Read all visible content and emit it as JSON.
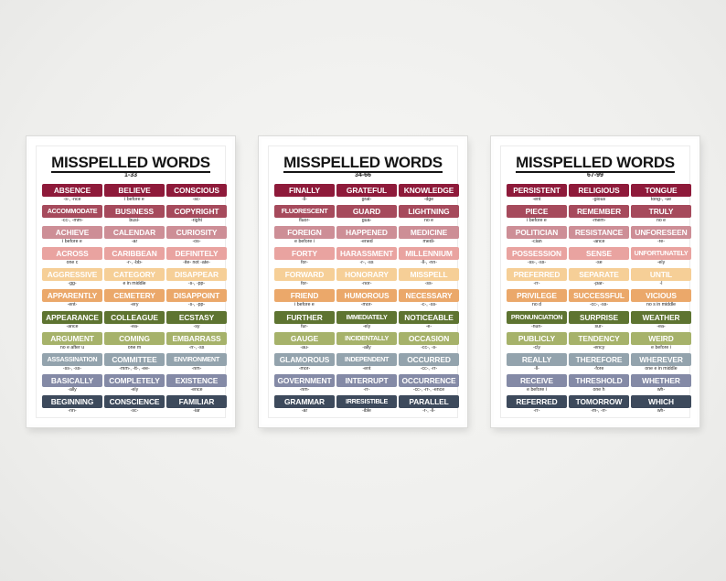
{
  "colors": {
    "rows": [
      "#8e1a3a",
      "#a64a5c",
      "#cd8e96",
      "#e9a3a0",
      "#f6cf97",
      "#eba86a",
      "#5e7431",
      "#a6b26a",
      "#93a3ad",
      "#848aa6",
      "#3d4a5c"
    ]
  },
  "posters": [
    {
      "title": "MISSPELLED WORDS",
      "range": "1-33",
      "rows": [
        [
          {
            "word": "ABSENCE",
            "hint": "-s-, -nce"
          },
          {
            "word": "BELIEVE",
            "hint": "i before e"
          },
          {
            "word": "CONSCIOUS",
            "hint": "-sc-"
          }
        ],
        [
          {
            "word": "ACCOMMODATE",
            "hint": "-cc-, -mm-"
          },
          {
            "word": "BUSINESS",
            "hint": "busi-"
          },
          {
            "word": "COPYRIGHT",
            "hint": "-right"
          }
        ],
        [
          {
            "word": "ACHIEVE",
            "hint": "i before e"
          },
          {
            "word": "CALENDAR",
            "hint": "-ar"
          },
          {
            "word": "CURIOSITY",
            "hint": "-os-"
          }
        ],
        [
          {
            "word": "ACROSS",
            "hint": "one c"
          },
          {
            "word": "CARIBBEAN",
            "hint": "-r-, -bb-"
          },
          {
            "word": "DEFINITELY",
            "hint": "-ite- not -ate-"
          }
        ],
        [
          {
            "word": "AGGRESSIVE",
            "hint": "-gg-"
          },
          {
            "word": "CATEGORY",
            "hint": "e in middle"
          },
          {
            "word": "DISAPPEAR",
            "hint": "-s-, -pp-"
          }
        ],
        [
          {
            "word": "APPARENTLY",
            "hint": "-ent-"
          },
          {
            "word": "CEMETERY",
            "hint": "-ery"
          },
          {
            "word": "DISAPPOINT",
            "hint": "-s-, -pp-"
          }
        ],
        [
          {
            "word": "APPEARANCE",
            "hint": "-ance"
          },
          {
            "word": "COLLEAGUE",
            "hint": "-ea-"
          },
          {
            "word": "ECSTASY",
            "hint": "-sy"
          }
        ],
        [
          {
            "word": "ARGUMENT",
            "hint": "no e after u"
          },
          {
            "word": "COMING",
            "hint": "one m"
          },
          {
            "word": "EMBARRASS",
            "hint": "-rr-, -ss"
          }
        ],
        [
          {
            "word": "ASSASSINATION",
            "hint": "-ss-, -ss-"
          },
          {
            "word": "COMMITTEE",
            "hint": "-mm-, -tt-, -ee-"
          },
          {
            "word": "ENVIRONMENT",
            "hint": "-nm-"
          }
        ],
        [
          {
            "word": "BASICALLY",
            "hint": "-ally"
          },
          {
            "word": "COMPLETELY",
            "hint": "-ely"
          },
          {
            "word": "EXISTENCE",
            "hint": "-ence"
          }
        ],
        [
          {
            "word": "BEGINNING",
            "hint": "-nn-"
          },
          {
            "word": "CONSCIENCE",
            "hint": "-sc-"
          },
          {
            "word": "FAMILIAR",
            "hint": "-iar"
          }
        ]
      ]
    },
    {
      "title": "MISSPELLED WORDS",
      "range": "34-66",
      "rows": [
        [
          {
            "word": "FINALLY",
            "hint": "-ll-"
          },
          {
            "word": "GRATEFUL",
            "hint": "grat-"
          },
          {
            "word": "KNOWLEDGE",
            "hint": "-dge"
          }
        ],
        [
          {
            "word": "FLUORESCENT",
            "hint": "fluor-"
          },
          {
            "word": "GUARD",
            "hint": "gua-"
          },
          {
            "word": "LIGHTNING",
            "hint": "no e"
          }
        ],
        [
          {
            "word": "FOREIGN",
            "hint": "e before i"
          },
          {
            "word": "HAPPENED",
            "hint": "-ened"
          },
          {
            "word": "MEDICINE",
            "hint": "medi-"
          }
        ],
        [
          {
            "word": "FORTY",
            "hint": "for-"
          },
          {
            "word": "HARASSMENT",
            "hint": "-r-, -ss"
          },
          {
            "word": "MILLENNIUM",
            "hint": "-ll-, -nn-"
          }
        ],
        [
          {
            "word": "FORWARD",
            "hint": "for-"
          },
          {
            "word": "HONORARY",
            "hint": "-nor-"
          },
          {
            "word": "MISSPELL",
            "hint": "-ss-"
          }
        ],
        [
          {
            "word": "FRIEND",
            "hint": "i before e"
          },
          {
            "word": "HUMOROUS",
            "hint": "-mor-"
          },
          {
            "word": "NECESSARY",
            "hint": "-c-, -ss-"
          }
        ],
        [
          {
            "word": "FURTHER",
            "hint": "fur-"
          },
          {
            "word": "IMMEDIATELY",
            "hint": "-ely"
          },
          {
            "word": "NOTICEABLE",
            "hint": "-e-"
          }
        ],
        [
          {
            "word": "GAUGE",
            "hint": "-au-"
          },
          {
            "word": "INCIDENTALLY",
            "hint": "-ally"
          },
          {
            "word": "OCCASION",
            "hint": "-cc-, -s-"
          }
        ],
        [
          {
            "word": "GLAMOROUS",
            "hint": "-mor-"
          },
          {
            "word": "INDEPENDENT",
            "hint": "-ent"
          },
          {
            "word": "OCCURRED",
            "hint": "-cc-, -rr-"
          }
        ],
        [
          {
            "word": "GOVERNMENT",
            "hint": "-nm-"
          },
          {
            "word": "INTERRUPT",
            "hint": "-rr-"
          },
          {
            "word": "OCCURRENCE",
            "hint": "-cc-, -rr-, -ence"
          }
        ],
        [
          {
            "word": "GRAMMAR",
            "hint": "-ar"
          },
          {
            "word": "IRRESISTIBLE",
            "hint": "-ible"
          },
          {
            "word": "PARALLEL",
            "hint": "-r-, -ll-"
          }
        ]
      ]
    },
    {
      "title": "MISSPELLED WORDS",
      "range": "67-99",
      "rows": [
        [
          {
            "word": "PERSISTENT",
            "hint": "-ent"
          },
          {
            "word": "RELIGIOUS",
            "hint": "-gious"
          },
          {
            "word": "TONGUE",
            "hint": "tong-, -ue"
          }
        ],
        [
          {
            "word": "PIECE",
            "hint": "i before e"
          },
          {
            "word": "REMEMBER",
            "hint": "-mem-"
          },
          {
            "word": "TRULY",
            "hint": "no e"
          }
        ],
        [
          {
            "word": "POLITICIAN",
            "hint": "-cian"
          },
          {
            "word": "RESISTANCE",
            "hint": "-ance"
          },
          {
            "word": "UNFORESEEN",
            "hint": "-re-"
          }
        ],
        [
          {
            "word": "POSSESSION",
            "hint": "-ss-, -ss-"
          },
          {
            "word": "SENSE",
            "hint": "-se"
          },
          {
            "word": "UNFORTUNATELY",
            "hint": "-ely"
          }
        ],
        [
          {
            "word": "PREFERRED",
            "hint": "-rr-"
          },
          {
            "word": "SEPARATE",
            "hint": "-par-"
          },
          {
            "word": "UNTIL",
            "hint": "-l"
          }
        ],
        [
          {
            "word": "PRIVILEGE",
            "hint": "no d"
          },
          {
            "word": "SUCCESSFUL",
            "hint": "-cc-, -ss-"
          },
          {
            "word": "VICIOUS",
            "hint": "no s in middle"
          }
        ],
        [
          {
            "word": "PRONUNCIATION",
            "hint": "-nun-"
          },
          {
            "word": "SURPRISE",
            "hint": "sur-"
          },
          {
            "word": "WEATHER",
            "hint": "-ea-"
          }
        ],
        [
          {
            "word": "PUBLICLY",
            "hint": "-cly"
          },
          {
            "word": "TENDENCY",
            "hint": "-ency"
          },
          {
            "word": "WEIRD",
            "hint": "e before i"
          }
        ],
        [
          {
            "word": "REALLY",
            "hint": "-ll-"
          },
          {
            "word": "THEREFORE",
            "hint": "-fore"
          },
          {
            "word": "WHEREVER",
            "hint": "one e in middle"
          }
        ],
        [
          {
            "word": "RECEIVE",
            "hint": "e before i"
          },
          {
            "word": "THRESHOLD",
            "hint": "one h"
          },
          {
            "word": "WHETHER",
            "hint": "wh-"
          }
        ],
        [
          {
            "word": "REFERRED",
            "hint": "-rr-"
          },
          {
            "word": "TOMORROW",
            "hint": "-m-, -rr-"
          },
          {
            "word": "WHICH",
            "hint": "wh-"
          }
        ]
      ]
    }
  ]
}
